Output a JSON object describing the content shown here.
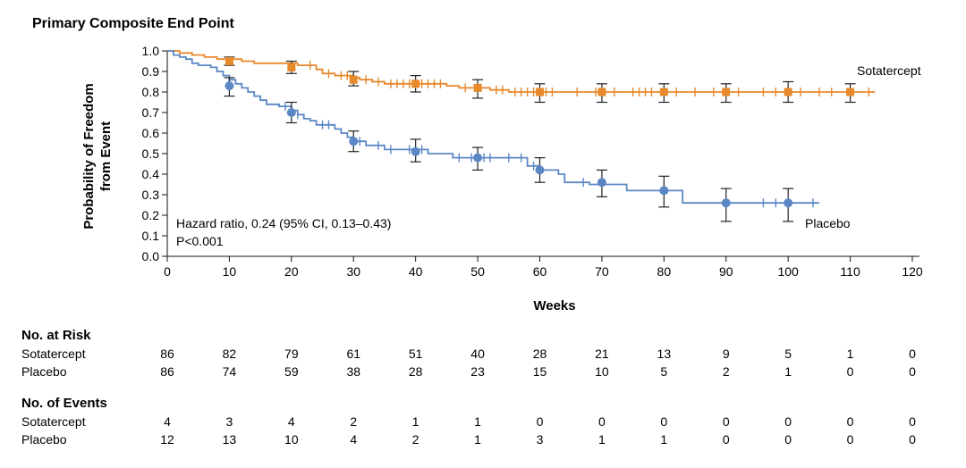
{
  "chart_data": {
    "type": "line",
    "title": "Primary Composite End Point",
    "xlabel": "Weeks",
    "ylabel_line1": "Probability of Freedom",
    "ylabel_line2": "from Event",
    "xlim": [
      0,
      120
    ],
    "ylim": [
      0,
      1
    ],
    "xticks": [
      0,
      10,
      20,
      30,
      40,
      50,
      60,
      70,
      80,
      90,
      100,
      110,
      120
    ],
    "yticks": [
      0.0,
      0.1,
      0.2,
      0.3,
      0.4,
      0.5,
      0.6,
      0.7,
      0.8,
      0.9,
      1.0
    ],
    "ytick_labels": [
      "0.0",
      "0.1",
      "0.2",
      "0.3",
      "0.4",
      "0.5",
      "0.6",
      "0.7",
      "0.8",
      "0.9",
      "1.0"
    ],
    "grid": false,
    "annotation_line1": "Hazard ratio, 0.24 (95% CI, 0.13–0.43)",
    "annotation_line2": "P<0.001",
    "series": [
      {
        "name": "Sotatercept",
        "color": "#e8892b",
        "steps": [
          [
            0,
            1.0
          ],
          [
            2,
            0.99
          ],
          [
            4,
            0.98
          ],
          [
            6,
            0.97
          ],
          [
            8,
            0.96
          ],
          [
            12,
            0.95
          ],
          [
            14,
            0.94
          ],
          [
            21,
            0.93
          ],
          [
            24,
            0.91
          ],
          [
            25,
            0.89
          ],
          [
            27,
            0.88
          ],
          [
            30,
            0.87
          ],
          [
            31,
            0.86
          ],
          [
            33,
            0.85
          ],
          [
            35,
            0.84
          ],
          [
            45,
            0.83
          ],
          [
            47,
            0.82
          ],
          [
            52,
            0.81
          ],
          [
            55,
            0.8
          ],
          [
            114,
            0.8
          ]
        ],
        "censors": [
          23,
          26,
          28,
          29,
          32,
          34,
          36,
          37,
          38,
          39,
          41,
          42,
          43,
          44,
          48,
          53,
          54,
          56,
          57,
          58,
          59,
          61,
          62,
          66,
          69,
          72,
          75,
          76,
          77,
          78,
          82,
          85,
          88,
          92,
          96,
          98,
          102,
          105,
          107,
          113
        ],
        "points": [
          {
            "x": 10,
            "y": 0.95,
            "lo": 0.93,
            "hi": 0.97
          },
          {
            "x": 20,
            "y": 0.92,
            "lo": 0.89,
            "hi": 0.95
          },
          {
            "x": 30,
            "y": 0.86,
            "lo": 0.83,
            "hi": 0.9
          },
          {
            "x": 40,
            "y": 0.84,
            "lo": 0.8,
            "hi": 0.88
          },
          {
            "x": 50,
            "y": 0.82,
            "lo": 0.77,
            "hi": 0.86
          },
          {
            "x": 60,
            "y": 0.8,
            "lo": 0.75,
            "hi": 0.84
          },
          {
            "x": 70,
            "y": 0.8,
            "lo": 0.75,
            "hi": 0.84
          },
          {
            "x": 80,
            "y": 0.8,
            "lo": 0.75,
            "hi": 0.84
          },
          {
            "x": 90,
            "y": 0.8,
            "lo": 0.75,
            "hi": 0.84
          },
          {
            "x": 100,
            "y": 0.8,
            "lo": 0.75,
            "hi": 0.85
          },
          {
            "x": 110,
            "y": 0.8,
            "lo": 0.75,
            "hi": 0.84
          }
        ],
        "label": "Sotatercept"
      },
      {
        "name": "Placebo",
        "color": "#5b87c5",
        "steps": [
          [
            0,
            1.0
          ],
          [
            1,
            0.98
          ],
          [
            2,
            0.97
          ],
          [
            3,
            0.96
          ],
          [
            4,
            0.94
          ],
          [
            5,
            0.93
          ],
          [
            7,
            0.92
          ],
          [
            8,
            0.9
          ],
          [
            9,
            0.88
          ],
          [
            10,
            0.86
          ],
          [
            11,
            0.84
          ],
          [
            12,
            0.82
          ],
          [
            13,
            0.8
          ],
          [
            14,
            0.78
          ],
          [
            15,
            0.76
          ],
          [
            16,
            0.74
          ],
          [
            18,
            0.73
          ],
          [
            20,
            0.71
          ],
          [
            21,
            0.69
          ],
          [
            22,
            0.67
          ],
          [
            23,
            0.66
          ],
          [
            24,
            0.64
          ],
          [
            27,
            0.62
          ],
          [
            28,
            0.6
          ],
          [
            29,
            0.58
          ],
          [
            30,
            0.56
          ],
          [
            32,
            0.54
          ],
          [
            35,
            0.52
          ],
          [
            42,
            0.5
          ],
          [
            46,
            0.48
          ],
          [
            58,
            0.44
          ],
          [
            60,
            0.42
          ],
          [
            63,
            0.4
          ],
          [
            64,
            0.36
          ],
          [
            68,
            0.35
          ],
          [
            74,
            0.32
          ],
          [
            83,
            0.26
          ],
          [
            105,
            0.26
          ]
        ],
        "censors": [
          10,
          19,
          21,
          25,
          26,
          31,
          34,
          36,
          39,
          41,
          47,
          49,
          51,
          52,
          55,
          57,
          59,
          67,
          96,
          98,
          104
        ],
        "points": [
          {
            "x": 10,
            "y": 0.83,
            "lo": 0.78,
            "hi": 0.87
          },
          {
            "x": 20,
            "y": 0.7,
            "lo": 0.65,
            "hi": 0.75
          },
          {
            "x": 30,
            "y": 0.56,
            "lo": 0.51,
            "hi": 0.61
          },
          {
            "x": 40,
            "y": 0.51,
            "lo": 0.46,
            "hi": 0.57
          },
          {
            "x": 50,
            "y": 0.48,
            "lo": 0.42,
            "hi": 0.53
          },
          {
            "x": 60,
            "y": 0.42,
            "lo": 0.36,
            "hi": 0.48
          },
          {
            "x": 70,
            "y": 0.36,
            "lo": 0.29,
            "hi": 0.42
          },
          {
            "x": 80,
            "y": 0.32,
            "lo": 0.24,
            "hi": 0.39
          },
          {
            "x": 90,
            "y": 0.26,
            "lo": 0.17,
            "hi": 0.33
          },
          {
            "x": 100,
            "y": 0.26,
            "lo": 0.17,
            "hi": 0.33
          }
        ],
        "label": "Placebo"
      }
    ]
  },
  "risk_table": {
    "at_risk_title": "No. at Risk",
    "events_title": "No. of Events",
    "at_risk": [
      {
        "label": "Sotatercept",
        "values": [
          "86",
          "82",
          "79",
          "61",
          "51",
          "40",
          "28",
          "21",
          "13",
          "9",
          "5",
          "1",
          "0"
        ]
      },
      {
        "label": "Placebo",
        "values": [
          "86",
          "74",
          "59",
          "38",
          "28",
          "23",
          "15",
          "10",
          "5",
          "2",
          "1",
          "0",
          "0"
        ]
      }
    ],
    "events": [
      {
        "label": "Sotatercept",
        "values": [
          "4",
          "3",
          "4",
          "2",
          "1",
          "1",
          "0",
          "0",
          "0",
          "0",
          "0",
          "0",
          "0"
        ]
      },
      {
        "label": "Placebo",
        "values": [
          "12",
          "13",
          "10",
          "4",
          "2",
          "1",
          "3",
          "1",
          "1",
          "0",
          "0",
          "0",
          "0"
        ]
      }
    ]
  }
}
